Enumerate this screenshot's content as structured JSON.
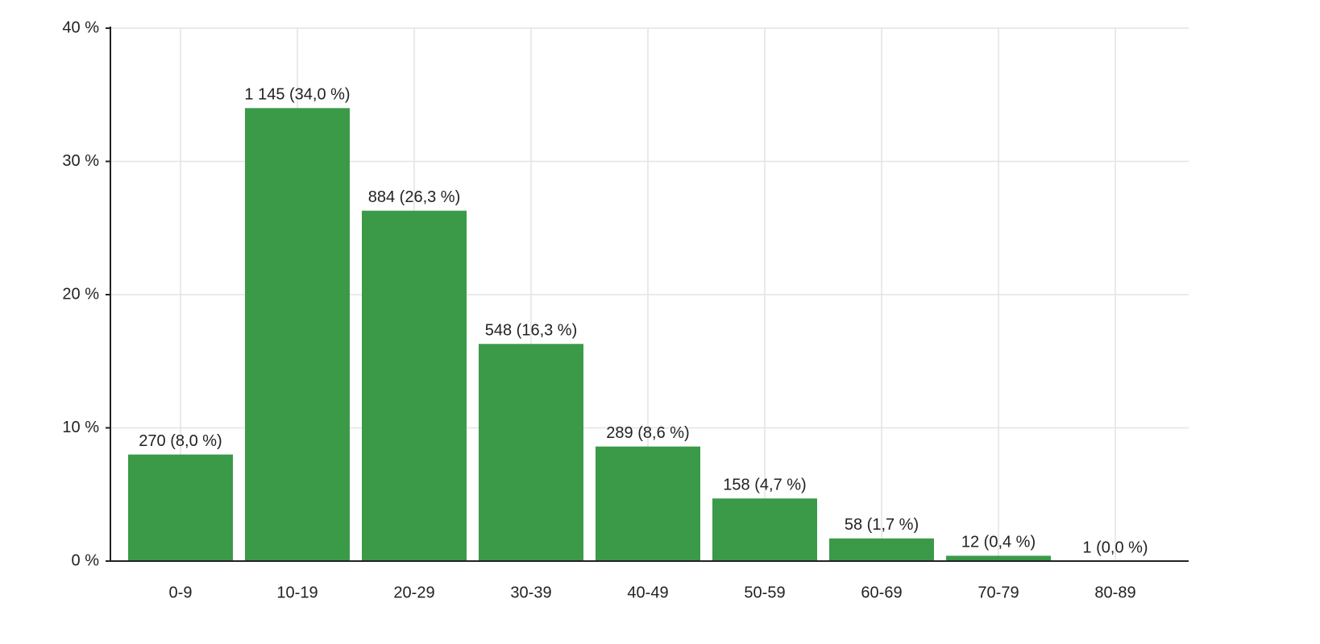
{
  "chart_data": {
    "type": "bar",
    "categories": [
      "0-9",
      "10-19",
      "20-29",
      "30-39",
      "40-49",
      "50-59",
      "60-69",
      "70-79",
      "80-89"
    ],
    "values": [
      8.0,
      34.0,
      26.3,
      16.3,
      8.6,
      4.7,
      1.7,
      0.4,
      0.0
    ],
    "value_labels": [
      "270 (8,0 %)",
      "1 145 (34,0 %)",
      "884 (26,3 %)",
      "548 (16,3 %)",
      "289 (8,6 %)",
      "158 (4,7 %)",
      "58 (1,7 %)",
      "12 (0,4 %)",
      "1 (0,0 %)"
    ],
    "color": "#3a9a48",
    "ylim": [
      0,
      40
    ],
    "yticks": [
      {
        "value": 0,
        "label": "0 %"
      },
      {
        "value": 10,
        "label": "10 %"
      },
      {
        "value": 20,
        "label": "20 %"
      },
      {
        "value": 30,
        "label": "30 %"
      },
      {
        "value": 40,
        "label": "40 %"
      }
    ],
    "grid": true
  }
}
